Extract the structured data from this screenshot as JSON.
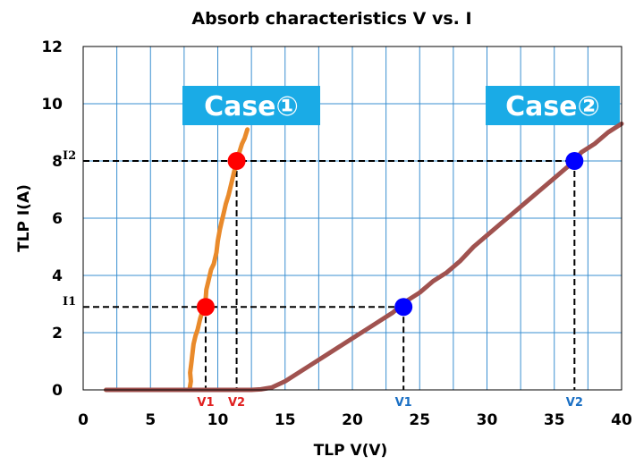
{
  "chart_data": {
    "type": "line",
    "title": "Absorb characteristics V vs. I",
    "xlabel": "TLP V(V)",
    "ylabel": "TLP I(A)",
    "xlim": [
      0,
      40
    ],
    "ylim": [
      0,
      12
    ],
    "xticks": [
      0,
      5,
      10,
      15,
      20,
      25,
      30,
      35,
      40
    ],
    "yticks": [
      0,
      2,
      4,
      6,
      8,
      10,
      12
    ],
    "xgrid_step": 2.5,
    "grid": true,
    "colors": {
      "case1": "#E98A2B",
      "case2": "#A0524F",
      "grid": "#3A8FD1",
      "label_bg": "#1AABE6",
      "red": "#FF0000",
      "blue": "#0000FF"
    },
    "case_labels": [
      "Case①",
      "Case②"
    ],
    "series": [
      {
        "label": "Case①",
        "color": "#E98A2B",
        "x": [
          1.7,
          3,
          5,
          7,
          7.9,
          8.0,
          7.95,
          8.05,
          8.1,
          8.2,
          8.35,
          8.5,
          8.6,
          8.7,
          8.9,
          9.0,
          9.1,
          9.15,
          9.3,
          9.5,
          9.7,
          9.9,
          10.0,
          10.15,
          10.3,
          10.45,
          10.6,
          10.8,
          11.0,
          11.2,
          11.4,
          11.6,
          11.8,
          12.0,
          12.2
        ],
        "y": [
          0,
          0,
          0,
          0,
          0,
          0.3,
          0.6,
          1.0,
          1.2,
          1.6,
          1.9,
          2.1,
          2.3,
          2.5,
          2.8,
          3.0,
          3.2,
          3.5,
          3.8,
          4.2,
          4.4,
          4.8,
          5.2,
          5.6,
          5.9,
          6.2,
          6.5,
          6.8,
          7.2,
          7.6,
          8.0,
          8.3,
          8.6,
          8.8,
          9.1
        ]
      },
      {
        "label": "Case②",
        "color": "#A0524F",
        "x": [
          1.7,
          5,
          10,
          12.5,
          13.2,
          14.0,
          15.0,
          16.0,
          17.0,
          18.0,
          19.0,
          20.0,
          21.0,
          22.0,
          23.0,
          24.0,
          25.0,
          26.0,
          27.0,
          28.0,
          29.0,
          30.0,
          31.0,
          32.0,
          33.0,
          34.0,
          35.0,
          36.0,
          36.5,
          37.0,
          38.0,
          39.0,
          40.0
        ],
        "y": [
          0,
          0,
          0,
          0,
          0.02,
          0.08,
          0.3,
          0.6,
          0.9,
          1.2,
          1.5,
          1.8,
          2.1,
          2.4,
          2.7,
          3.1,
          3.4,
          3.8,
          4.1,
          4.5,
          5.0,
          5.4,
          5.8,
          6.2,
          6.6,
          7.0,
          7.4,
          7.8,
          8.0,
          8.3,
          8.6,
          9.0,
          9.3
        ]
      }
    ],
    "points": [
      {
        "x": 9.1,
        "y": 2.9,
        "color": "red"
      },
      {
        "x": 11.4,
        "y": 8.0,
        "color": "red"
      },
      {
        "x": 23.8,
        "y": 2.9,
        "color": "blue"
      },
      {
        "x": 36.5,
        "y": 8.0,
        "color": "blue"
      }
    ],
    "v_markers": [
      {
        "x": 9.1,
        "label": "V1",
        "color": "red"
      },
      {
        "x": 11.4,
        "label": "V2",
        "color": "red"
      },
      {
        "x": 23.8,
        "label": "V1",
        "color": "blue"
      },
      {
        "x": 36.5,
        "label": "V2",
        "color": "blue"
      }
    ],
    "i_markers": [
      {
        "y": 2.9,
        "label": "I1"
      },
      {
        "y": 8.0,
        "label": "I2"
      }
    ]
  }
}
